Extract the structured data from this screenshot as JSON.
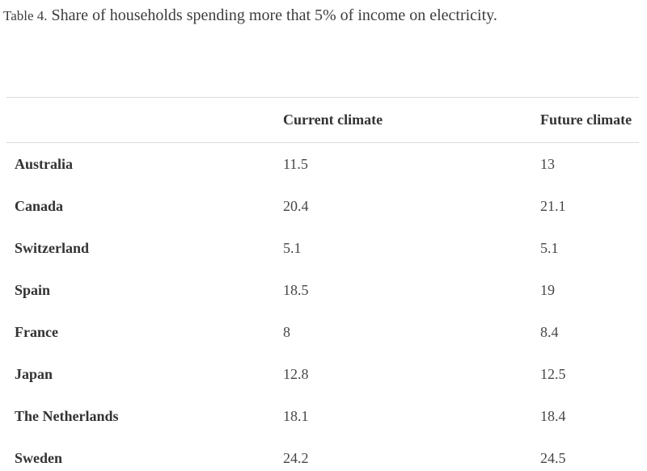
{
  "caption": {
    "label": "Table 4.",
    "text": "Share of households spending more that 5% of income on electricity."
  },
  "table": {
    "columns": [
      "",
      "Current climate",
      "Future climate"
    ],
    "rows": [
      {
        "country": "Australia",
        "current": "11.5",
        "future": "13"
      },
      {
        "country": "Canada",
        "current": "20.4",
        "future": "21.1"
      },
      {
        "country": "Switzerland",
        "current": "5.1",
        "future": "5.1"
      },
      {
        "country": "Spain",
        "current": "18.5",
        "future": "19"
      },
      {
        "country": "France",
        "current": "8",
        "future": "8.4"
      },
      {
        "country": "Japan",
        "current": "12.8",
        "future": "12.5"
      },
      {
        "country": "The Netherlands",
        "current": "18.1",
        "future": "18.4"
      },
      {
        "country": "Sweden",
        "current": "24.2",
        "future": "24.5"
      }
    ]
  },
  "colors": {
    "background": "#ffffff",
    "caption_text": "#3d3d3d",
    "bold_text": "#333333",
    "value_text": "#464646",
    "rule": "#dcdcdc"
  }
}
